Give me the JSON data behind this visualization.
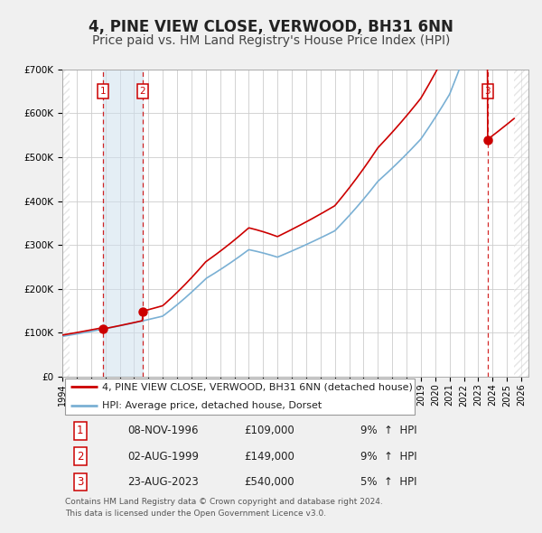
{
  "title": "4, PINE VIEW CLOSE, VERWOOD, BH31 6NN",
  "subtitle": "Price paid vs. HM Land Registry's House Price Index (HPI)",
  "xlim": [
    1994.0,
    2026.5
  ],
  "ylim": [
    0,
    700000
  ],
  "yticks": [
    0,
    100000,
    200000,
    300000,
    400000,
    500000,
    600000,
    700000
  ],
  "ytick_labels": [
    "£0",
    "£100K",
    "£200K",
    "£300K",
    "£400K",
    "£500K",
    "£600K",
    "£700K"
  ],
  "xticks": [
    1994,
    1995,
    1996,
    1997,
    1998,
    1999,
    2000,
    2001,
    2002,
    2003,
    2004,
    2005,
    2006,
    2007,
    2008,
    2009,
    2010,
    2011,
    2012,
    2013,
    2014,
    2015,
    2016,
    2017,
    2018,
    2019,
    2020,
    2021,
    2022,
    2023,
    2024,
    2025,
    2026
  ],
  "sale_color": "#cc0000",
  "hpi_color": "#7ab0d4",
  "sale_label": "4, PINE VIEW CLOSE, VERWOOD, BH31 6NN (detached house)",
  "hpi_label": "HPI: Average price, detached house, Dorset",
  "transactions": [
    {
      "num": 1,
      "date": "08-NOV-1996",
      "year": 1996.85,
      "price": 109000,
      "pct": "9%",
      "dir": "↑"
    },
    {
      "num": 2,
      "date": "02-AUG-1999",
      "year": 1999.58,
      "price": 149000,
      "pct": "9%",
      "dir": "↑"
    },
    {
      "num": 3,
      "date": "23-AUG-2023",
      "year": 2023.64,
      "price": 540000,
      "pct": "5%",
      "dir": "↑"
    }
  ],
  "footnote1": "Contains HM Land Registry data © Crown copyright and database right 2024.",
  "footnote2": "This data is licensed under the Open Government Licence v3.0.",
  "background_color": "#f0f0f0",
  "plot_bg_color": "#ffffff",
  "grid_color": "#cccccc",
  "vshade_color": "#cfe0ee",
  "hatch_color": "#cccccc",
  "title_fontsize": 12,
  "subtitle_fontsize": 10,
  "tick_fontsize": 7,
  "legend_fontsize": 8,
  "table_fontsize": 8.5,
  "foot_fontsize": 6.5
}
